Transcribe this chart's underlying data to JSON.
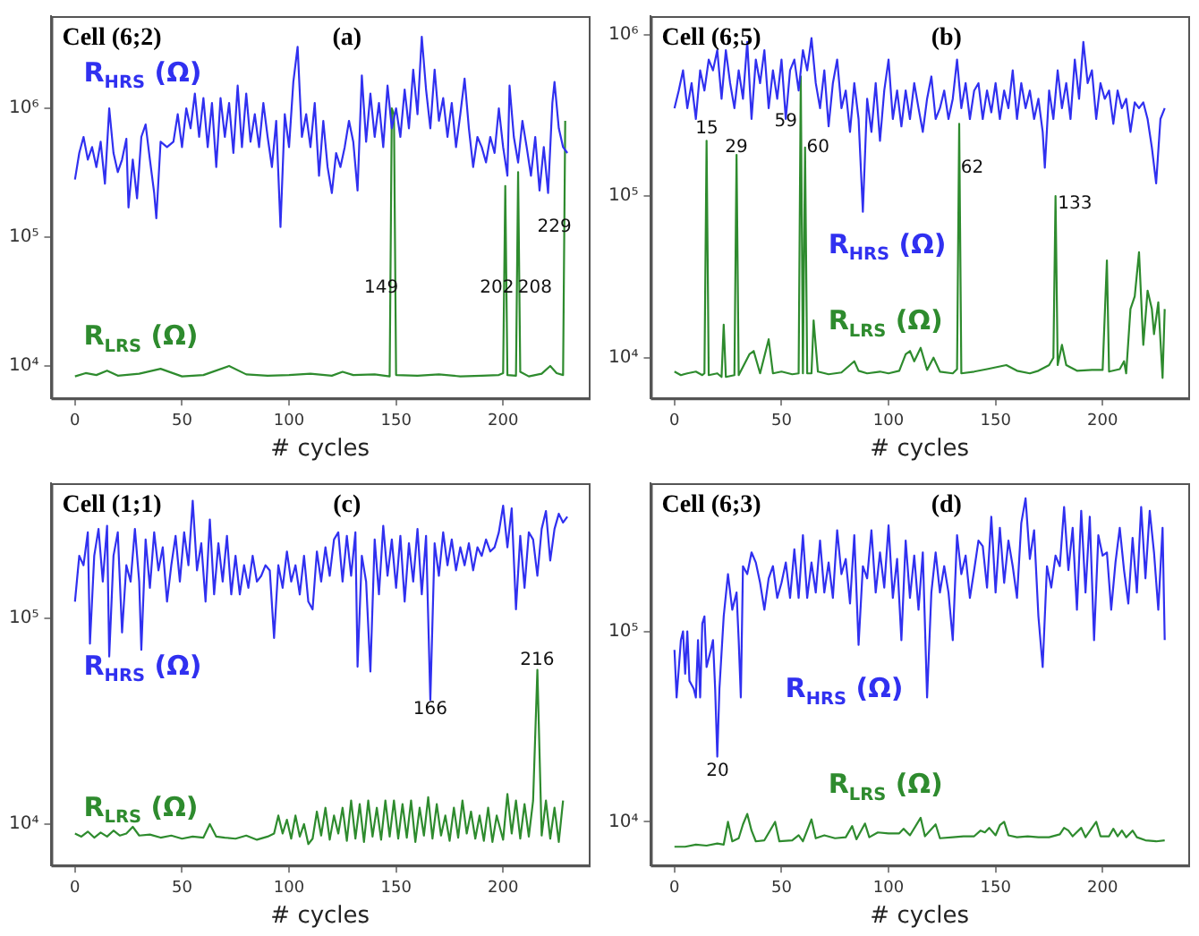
{
  "chart_data": [
    {
      "type": "line",
      "title": "Cell (6;2)",
      "subtitle": "(a)",
      "xlabel": "# cycles",
      "log": "y",
      "xlim": [
        -11,
        240
      ],
      "xticks": [
        0,
        50,
        100,
        150,
        200
      ],
      "ylim": [
        5600,
        5200000
      ],
      "yticks": [
        {
          "value": 10000,
          "label": "10⁴"
        },
        {
          "value": 100000,
          "label": "10⁵"
        },
        {
          "value": 1000000,
          "label": "10⁶"
        }
      ],
      "series": [
        {
          "name": "R$_{HRS}$ (Ω)",
          "color": "#3030f0",
          "x": [
            0,
            2,
            4,
            6,
            8,
            10,
            12,
            14,
            16,
            18,
            20,
            22,
            24,
            25,
            27,
            29,
            31,
            33,
            35,
            37,
            38,
            40,
            43,
            46,
            48,
            50,
            52,
            54,
            56,
            58,
            60,
            62,
            64,
            66,
            68,
            70,
            72,
            74,
            76,
            78,
            80,
            82,
            84,
            86,
            88,
            90,
            92,
            94,
            96,
            98,
            100,
            102,
            104,
            106,
            108,
            110,
            112,
            114,
            116,
            118,
            120,
            122,
            124,
            126,
            128,
            130,
            132,
            134,
            136,
            138,
            140,
            142,
            144,
            146,
            148,
            150,
            152,
            154,
            156,
            158,
            160,
            162,
            164,
            166,
            168,
            170,
            172,
            174,
            176,
            178,
            180,
            182,
            184,
            186,
            188,
            190,
            192,
            194,
            196,
            198,
            200,
            202,
            203,
            205,
            207,
            209,
            211,
            213,
            215,
            217,
            219,
            221,
            223,
            224,
            226,
            228,
            230
          ],
          "values": [
            280000,
            450000,
            600000,
            400000,
            500000,
            350000,
            550000,
            260000,
            1000000,
            450000,
            320000,
            400000,
            580000,
            170000,
            400000,
            200000,
            600000,
            750000,
            400000,
            220000,
            140000,
            550000,
            500000,
            550000,
            900000,
            500000,
            1000000,
            700000,
            1300000,
            600000,
            1200000,
            500000,
            1100000,
            350000,
            1200000,
            600000,
            1100000,
            450000,
            1500000,
            500000,
            1300000,
            550000,
            900000,
            500000,
            1100000,
            600000,
            350000,
            800000,
            120000,
            900000,
            500000,
            1600000,
            3000000,
            600000,
            900000,
            500000,
            1100000,
            300000,
            800000,
            350000,
            220000,
            450000,
            350000,
            500000,
            800000,
            550000,
            230000,
            1800000,
            550000,
            1300000,
            600000,
            1100000,
            500000,
            1500000,
            700000,
            1000000,
            600000,
            1400000,
            700000,
            2000000,
            900000,
            3600000,
            1400000,
            700000,
            2000000,
            800000,
            1200000,
            600000,
            1100000,
            500000,
            900000,
            1700000,
            700000,
            350000,
            600000,
            500000,
            380000,
            600000,
            450000,
            1000000,
            500000,
            300000,
            1500000,
            600000,
            380000,
            800000,
            500000,
            300000,
            600000,
            230000,
            500000,
            220000,
            1100000,
            1600000,
            700000,
            500000,
            450000
          ]
        },
        {
          "name": "R$_{LRS}$ (Ω)",
          "color": "#2e8b2e",
          "x": [
            0,
            5,
            10,
            15,
            20,
            30,
            40,
            50,
            60,
            72,
            80,
            90,
            100,
            110,
            120,
            125,
            130,
            140,
            147,
            148,
            149,
            150,
            160,
            170,
            180,
            190,
            198,
            200,
            201,
            202,
            206,
            207,
            208,
            212,
            218,
            222,
            225,
            228,
            229
          ],
          "values": [
            8300,
            8800,
            8500,
            9200,
            8400,
            8700,
            9500,
            8300,
            8500,
            10000,
            8600,
            8400,
            8500,
            8700,
            8400,
            9000,
            8500,
            8600,
            8300,
            1000000,
            900000,
            8500,
            8400,
            8600,
            8300,
            8400,
            8500,
            8800,
            250000,
            8500,
            8400,
            320000,
            9000,
            8300,
            8700,
            10000,
            8800,
            8500,
            800000
          ]
        }
      ],
      "annotations": [
        "149",
        "202",
        "208",
        "229"
      ]
    },
    {
      "type": "line",
      "title": "Cell (6;5)",
      "subtitle": "(b)",
      "xlabel": "# cycles",
      "log": "y",
      "xlim": [
        -11,
        240
      ],
      "xticks": [
        0,
        50,
        100,
        150,
        200
      ],
      "ylim": [
        5600,
        1300000
      ],
      "yticks": [
        {
          "value": 10000,
          "label": "10⁴"
        },
        {
          "value": 100000,
          "label": "10⁵"
        },
        {
          "value": 1000000,
          "label": "10⁶"
        }
      ],
      "series": [
        {
          "name": "R$_{HRS}$ (Ω)",
          "color": "#3030f0",
          "x": [
            0,
            2,
            4,
            6,
            8,
            10,
            12,
            14,
            16,
            18,
            20,
            22,
            24,
            26,
            28,
            30,
            32,
            34,
            36,
            38,
            40,
            42,
            44,
            46,
            48,
            50,
            52,
            54,
            56,
            58,
            60,
            62,
            64,
            66,
            68,
            70,
            72,
            74,
            76,
            78,
            80,
            82,
            84,
            86,
            88,
            90,
            92,
            94,
            96,
            98,
            100,
            102,
            104,
            106,
            108,
            110,
            112,
            114,
            116,
            118,
            120,
            122,
            124,
            126,
            128,
            130,
            132,
            134,
            136,
            138,
            140,
            142,
            144,
            146,
            148,
            150,
            152,
            154,
            156,
            158,
            160,
            162,
            164,
            166,
            168,
            170,
            172,
            173,
            175,
            177,
            179,
            181,
            183,
            185,
            187,
            189,
            191,
            193,
            195,
            197,
            199,
            201,
            203,
            205,
            207,
            209,
            211,
            213,
            215,
            217,
            219,
            221,
            223,
            225,
            227,
            229
          ],
          "values": [
            350000,
            450000,
            600000,
            350000,
            500000,
            300000,
            600000,
            450000,
            700000,
            600000,
            800000,
            400000,
            800000,
            500000,
            350000,
            600000,
            400000,
            900000,
            300000,
            700000,
            500000,
            800000,
            350000,
            600000,
            400000,
            700000,
            300000,
            600000,
            700000,
            450000,
            800000,
            600000,
            950000,
            500000,
            350000,
            600000,
            270000,
            500000,
            700000,
            350000,
            450000,
            250000,
            500000,
            300000,
            80000,
            400000,
            250000,
            500000,
            220000,
            450000,
            700000,
            300000,
            450000,
            270000,
            450000,
            300000,
            500000,
            350000,
            250000,
            400000,
            550000,
            300000,
            350000,
            450000,
            300000,
            400000,
            700000,
            350000,
            500000,
            300000,
            450000,
            500000,
            300000,
            450000,
            330000,
            500000,
            300000,
            450000,
            350000,
            600000,
            300000,
            500000,
            350000,
            450000,
            300000,
            400000,
            250000,
            150000,
            450000,
            300000,
            600000,
            350000,
            500000,
            300000,
            700000,
            400000,
            900000,
            500000,
            600000,
            300000,
            500000,
            400000,
            450000,
            280000,
            450000,
            350000,
            400000,
            250000,
            380000,
            350000,
            380000,
            300000,
            200000,
            120000,
            300000,
            350000
          ]
        },
        {
          "name": "R$_{LRS}$ (Ω)",
          "color": "#2e8b2e",
          "x": [
            0,
            3,
            6,
            10,
            13,
            14,
            15,
            16,
            20,
            22,
            23,
            24,
            28,
            29,
            30,
            35,
            37,
            40,
            44,
            46,
            50,
            55,
            58,
            59,
            60,
            61,
            62,
            64,
            65,
            67,
            72,
            78,
            84,
            86,
            90,
            96,
            100,
            105,
            108,
            110,
            112,
            115,
            118,
            121,
            124,
            130,
            132,
            133,
            134,
            140,
            146,
            155,
            160,
            166,
            170,
            175,
            177,
            178,
            179,
            181,
            183,
            188,
            195,
            200,
            202,
            203,
            208,
            210,
            211,
            213,
            215,
            217,
            219,
            221,
            223,
            224,
            226,
            228,
            229
          ],
          "values": [
            8200,
            7800,
            8000,
            8200,
            7800,
            8000,
            220000,
            7800,
            8000,
            7600,
            16000,
            7600,
            7800,
            180000,
            7800,
            10500,
            11000,
            8000,
            13000,
            8000,
            8200,
            7900,
            8000,
            550000,
            8000,
            200000,
            8000,
            8000,
            17000,
            8200,
            7900,
            8100,
            9500,
            8300,
            8000,
            8200,
            8000,
            8300,
            10500,
            11000,
            9500,
            11500,
            8400,
            10000,
            8200,
            8000,
            8500,
            280000,
            8000,
            8200,
            8500,
            9000,
            8300,
            8000,
            8300,
            9000,
            10000,
            100000,
            9000,
            12000,
            9000,
            8300,
            8400,
            8400,
            40000,
            8200,
            8500,
            9500,
            8000,
            20000,
            24000,
            45000,
            12000,
            26000,
            20000,
            14000,
            22000,
            7500,
            20000
          ]
        }
      ],
      "annotations": [
        "15",
        "29",
        "59",
        "60",
        "62",
        "133"
      ]
    },
    {
      "type": "line",
      "title": "Cell (1;1)",
      "subtitle": "(c)",
      "xlabel": "# cycles",
      "log": "y",
      "xlim": [
        -11,
        240
      ],
      "xticks": [
        0,
        50,
        100,
        150,
        200
      ],
      "ylim": [
        6300,
        450000
      ],
      "yticks": [
        {
          "value": 10000,
          "label": "10⁴"
        },
        {
          "value": 100000,
          "label": "10⁵"
        }
      ],
      "series": [
        {
          "name": "R$_{HRS}$ (Ω)",
          "color": "#3030f0",
          "x": [
            0,
            2,
            4,
            6,
            7,
            9,
            11,
            13,
            15,
            16,
            18,
            20,
            22,
            24,
            26,
            28,
            30,
            31,
            33,
            35,
            37,
            39,
            41,
            43,
            45,
            47,
            49,
            51,
            53,
            55,
            57,
            59,
            61,
            63,
            65,
            67,
            69,
            71,
            73,
            75,
            77,
            79,
            81,
            83,
            85,
            87,
            89,
            91,
            93,
            95,
            97,
            99,
            101,
            103,
            105,
            107,
            109,
            111,
            113,
            115,
            117,
            119,
            121,
            123,
            125,
            127,
            129,
            131,
            132,
            134,
            136,
            138,
            140,
            142,
            144,
            146,
            148,
            150,
            152,
            154,
            156,
            158,
            160,
            162,
            164,
            166,
            168,
            170,
            172,
            174,
            176,
            178,
            180,
            182,
            184,
            186,
            188,
            190,
            192,
            194,
            196,
            198,
            200,
            202,
            204,
            206,
            208,
            210,
            212,
            214,
            216,
            218,
            220,
            222,
            224,
            226,
            228,
            230
          ],
          "values": [
            120000,
            200000,
            180000,
            260000,
            75000,
            200000,
            270000,
            150000,
            280000,
            65000,
            200000,
            260000,
            85000,
            180000,
            150000,
            270000,
            150000,
            70000,
            240000,
            140000,
            260000,
            170000,
            220000,
            120000,
            180000,
            250000,
            150000,
            260000,
            180000,
            370000,
            170000,
            230000,
            120000,
            300000,
            130000,
            230000,
            150000,
            250000,
            130000,
            200000,
            130000,
            180000,
            140000,
            200000,
            150000,
            160000,
            180000,
            170000,
            80000,
            180000,
            140000,
            210000,
            150000,
            180000,
            130000,
            200000,
            120000,
            110000,
            210000,
            150000,
            220000,
            160000,
            240000,
            260000,
            150000,
            250000,
            160000,
            260000,
            58000,
            200000,
            150000,
            55000,
            240000,
            130000,
            280000,
            160000,
            240000,
            140000,
            250000,
            120000,
            230000,
            150000,
            270000,
            130000,
            250000,
            40000,
            230000,
            160000,
            260000,
            180000,
            240000,
            170000,
            220000,
            180000,
            230000,
            170000,
            220000,
            200000,
            240000,
            210000,
            220000,
            260000,
            350000,
            220000,
            340000,
            110000,
            250000,
            140000,
            260000,
            240000,
            160000,
            270000,
            330000,
            190000,
            270000,
            320000,
            290000,
            310000
          ]
        },
        {
          "name": "R$_{LRS}$ (Ω)",
          "color": "#2e8b2e",
          "x": [
            0,
            3,
            6,
            9,
            12,
            15,
            18,
            21,
            24,
            27,
            30,
            35,
            40,
            45,
            50,
            55,
            60,
            63,
            66,
            70,
            75,
            80,
            85,
            90,
            93,
            95,
            97,
            99,
            101,
            103,
            105,
            107,
            109,
            111,
            113,
            115,
            117,
            119,
            121,
            123,
            125,
            127,
            129,
            131,
            133,
            135,
            137,
            139,
            141,
            143,
            145,
            147,
            149,
            151,
            153,
            155,
            157,
            159,
            161,
            163,
            165,
            167,
            169,
            171,
            173,
            175,
            177,
            179,
            181,
            183,
            185,
            187,
            189,
            191,
            193,
            195,
            197,
            200,
            202,
            204,
            206,
            208,
            210,
            212,
            214,
            216,
            218,
            220,
            222,
            224,
            226,
            228
          ],
          "values": [
            9000,
            8700,
            9200,
            8600,
            9100,
            8700,
            9300,
            8800,
            9000,
            9700,
            8800,
            8900,
            8600,
            8800,
            8500,
            8700,
            8600,
            10000,
            8700,
            8600,
            8500,
            8800,
            8400,
            8700,
            9000,
            11000,
            9000,
            10500,
            8500,
            11000,
            8700,
            10000,
            8000,
            8500,
            11500,
            8800,
            12000,
            8400,
            11000,
            9000,
            12000,
            8300,
            13000,
            8500,
            12500,
            8200,
            13000,
            8700,
            12000,
            8400,
            13000,
            8700,
            13000,
            8500,
            12500,
            8600,
            13000,
            8200,
            12000,
            8800,
            13500,
            8500,
            12500,
            8800,
            11000,
            8300,
            12000,
            8600,
            13000,
            9000,
            11500,
            8500,
            11000,
            8300,
            12000,
            8200,
            11000,
            8400,
            14000,
            9000,
            13000,
            8500,
            12500,
            8700,
            13000,
            56000,
            8800,
            13000,
            8500,
            12000,
            8200,
            13000
          ]
        }
      ],
      "annotations": [
        "166",
        "216"
      ]
    },
    {
      "type": "line",
      "title": "Cell (6;3)",
      "subtitle": "(d)",
      "xlabel": "# cycles",
      "log": "y",
      "xlim": [
        -11,
        240
      ],
      "xticks": [
        0,
        50,
        100,
        150,
        200
      ],
      "ylim": [
        5900,
        600000
      ],
      "yticks": [
        {
          "value": 10000,
          "label": "10⁴"
        },
        {
          "value": 100000,
          "label": "10⁵"
        }
      ],
      "series": [
        {
          "name": "R$_{HRS}$ (Ω)",
          "color": "#3030f0",
          "x": [
            0,
            1,
            3,
            4,
            5,
            6,
            7,
            9,
            10,
            11,
            12,
            13,
            14,
            15,
            17,
            18,
            19,
            20,
            21,
            23,
            25,
            27,
            29,
            30,
            31,
            32,
            34,
            36,
            38,
            40,
            42,
            44,
            46,
            48,
            50,
            52,
            54,
            56,
            58,
            60,
            62,
            64,
            66,
            68,
            70,
            72,
            74,
            76,
            78,
            80,
            82,
            84,
            86,
            88,
            90,
            92,
            94,
            96,
            98,
            100,
            102,
            104,
            106,
            108,
            110,
            112,
            114,
            116,
            118,
            120,
            122,
            124,
            126,
            128,
            130,
            132,
            134,
            136,
            138,
            140,
            142,
            144,
            146,
            148,
            150,
            152,
            154,
            156,
            158,
            160,
            162,
            164,
            166,
            168,
            170,
            172,
            174,
            176,
            178,
            180,
            182,
            184,
            186,
            188,
            190,
            192,
            194,
            196,
            198,
            200,
            202,
            204,
            206,
            208,
            210,
            212,
            214,
            216,
            218,
            220,
            222,
            224,
            226,
            228,
            229
          ],
          "values": [
            80000,
            45000,
            90000,
            100000,
            60000,
            100000,
            55000,
            50000,
            45000,
            90000,
            45000,
            110000,
            120000,
            65000,
            80000,
            90000,
            50000,
            22000,
            50000,
            120000,
            200000,
            130000,
            160000,
            90000,
            45000,
            220000,
            200000,
            260000,
            230000,
            180000,
            130000,
            190000,
            220000,
            150000,
            180000,
            230000,
            150000,
            270000,
            150000,
            320000,
            150000,
            230000,
            160000,
            300000,
            160000,
            230000,
            150000,
            340000,
            200000,
            240000,
            140000,
            320000,
            85000,
            220000,
            190000,
            340000,
            160000,
            260000,
            170000,
            360000,
            150000,
            240000,
            90000,
            300000,
            150000,
            250000,
            130000,
            260000,
            45000,
            160000,
            260000,
            160000,
            220000,
            160000,
            90000,
            320000,
            200000,
            250000,
            150000,
            210000,
            300000,
            280000,
            170000,
            400000,
            160000,
            350000,
            180000,
            300000,
            220000,
            150000,
            370000,
            500000,
            240000,
            340000,
            120000,
            65000,
            220000,
            170000,
            250000,
            220000,
            450000,
            210000,
            350000,
            130000,
            430000,
            160000,
            400000,
            90000,
            320000,
            250000,
            260000,
            130000,
            230000,
            350000,
            210000,
            140000,
            310000,
            160000,
            450000,
            190000,
            430000,
            260000,
            130000,
            350000,
            90000
          ]
        },
        {
          "name": "R$_{LRS}$ (Ω)",
          "color": "#2e8b2e",
          "x": [
            0,
            5,
            10,
            15,
            20,
            23,
            25,
            27,
            30,
            32,
            34,
            36,
            38,
            42,
            47,
            49,
            55,
            58,
            60,
            64,
            66,
            70,
            75,
            80,
            83,
            85,
            89,
            91,
            95,
            100,
            105,
            107,
            110,
            115,
            117,
            122,
            124,
            130,
            135,
            140,
            143,
            145,
            147,
            150,
            152,
            154,
            156,
            160,
            165,
            170,
            175,
            180,
            182,
            184,
            186,
            190,
            192,
            197,
            199,
            203,
            205,
            207,
            209,
            211,
            214,
            216,
            220,
            225,
            229
          ],
          "values": [
            7400,
            7400,
            7600,
            7500,
            7700,
            7600,
            10000,
            7900,
            8200,
            9700,
            11000,
            9000,
            7900,
            8000,
            10000,
            7900,
            8000,
            8500,
            7900,
            10300,
            8200,
            8500,
            8200,
            8300,
            9500,
            8100,
            9800,
            8300,
            8800,
            8700,
            8700,
            9200,
            8500,
            10500,
            8400,
            9700,
            8200,
            8300,
            8400,
            8400,
            9000,
            8800,
            9300,
            8500,
            9600,
            10000,
            8500,
            8300,
            8400,
            8300,
            8300,
            8600,
            9300,
            9000,
            8400,
            9300,
            8300,
            10000,
            8400,
            8400,
            9200,
            8400,
            9000,
            8300,
            9000,
            8300,
            8000,
            7900,
            8000
          ]
        }
      ],
      "annotations": [
        "20"
      ]
    }
  ]
}
